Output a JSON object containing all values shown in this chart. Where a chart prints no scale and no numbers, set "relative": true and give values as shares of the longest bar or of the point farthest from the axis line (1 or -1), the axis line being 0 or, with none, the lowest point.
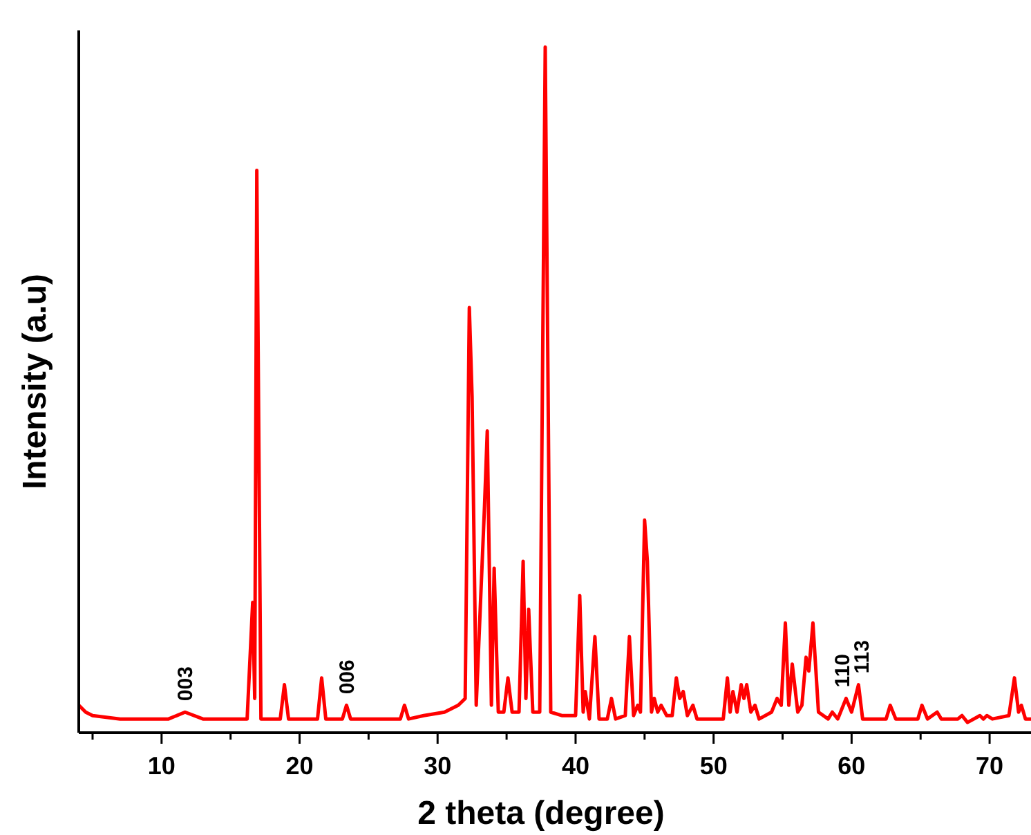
{
  "chart_data": {
    "type": "line",
    "relative": true,
    "xlabel": "2 theta (degree)",
    "ylabel": "Intensity (a.u)",
    "xlim": [
      4,
      73
    ],
    "xticks": [
      {
        "value": 5,
        "label": null
      },
      10,
      {
        "value": 15,
        "label": null
      },
      20,
      {
        "value": 25,
        "label": null
      },
      30,
      {
        "value": 35,
        "label": null
      },
      40,
      {
        "value": 45,
        "label": null
      },
      50,
      {
        "value": 55,
        "label": null
      },
      60,
      {
        "value": 65,
        "label": null
      },
      70
    ],
    "tick_labels": "x",
    "grid": false,
    "line_style": "solid",
    "annotations": [
      {
        "text": "003",
        "x": 11.7,
        "y": 0.03
      },
      {
        "text": "006",
        "x": 23.4,
        "y": 0.04
      },
      {
        "text": "110",
        "x": 59.3,
        "y": 0.05
      },
      {
        "text": "113",
        "x": 60.7,
        "y": 0.07
      }
    ],
    "series": [
      {
        "color": "#ff0000",
        "x": [
          4,
          4.5,
          5,
          7,
          9,
          10.5,
          11.7,
          13,
          15,
          16.2,
          16.6,
          16.75,
          16.9,
          17.2,
          18.6,
          18.9,
          19.2,
          21.3,
          21.6,
          21.9,
          23.1,
          23.4,
          23.7,
          25,
          27.3,
          27.6,
          27.9,
          29,
          30.5,
          31.5,
          32.0,
          32.3,
          32.5,
          32.8,
          33.4,
          33.6,
          33.9,
          34.1,
          34.4,
          34.8,
          35.1,
          35.4,
          35.9,
          36.2,
          36.4,
          36.6,
          36.9,
          37.4,
          37.8,
          38.2,
          39,
          40.0,
          40.3,
          40.55,
          40.7,
          41.0,
          41.4,
          41.7,
          42.3,
          42.6,
          42.9,
          43.6,
          43.9,
          44.2,
          44.5,
          44.7,
          45.0,
          45.2,
          45.5,
          45.7,
          45.95,
          46.2,
          46.6,
          47.0,
          47.3,
          47.55,
          47.8,
          48.1,
          48.5,
          48.8,
          50,
          50.7,
          51.0,
          51.2,
          51.4,
          51.7,
          52.0,
          52.2,
          52.4,
          52.7,
          53.0,
          53.3,
          54.2,
          54.6,
          54.9,
          55.2,
          55.45,
          55.7,
          56.1,
          56.4,
          56.7,
          56.9,
          57.2,
          57.6,
          58.3,
          58.6,
          59.0,
          59.6,
          60.0,
          60.5,
          60.8,
          61.5,
          62.5,
          62.8,
          63.2,
          64.8,
          65.1,
          65.5,
          66.2,
          66.5,
          67.7,
          68.0,
          68.4,
          69.3,
          69.55,
          69.8,
          70.2,
          71.4,
          71.8,
          72.1,
          72.3,
          72.6,
          73
        ],
        "values": [
          0.04,
          0.03,
          0.025,
          0.02,
          0.02,
          0.02,
          0.03,
          0.02,
          0.02,
          0.02,
          0.19,
          0.05,
          0.82,
          0.02,
          0.02,
          0.07,
          0.02,
          0.02,
          0.08,
          0.02,
          0.02,
          0.04,
          0.02,
          0.02,
          0.02,
          0.04,
          0.02,
          0.025,
          0.03,
          0.04,
          0.05,
          0.62,
          0.49,
          0.04,
          0.33,
          0.44,
          0.04,
          0.24,
          0.03,
          0.03,
          0.08,
          0.03,
          0.03,
          0.25,
          0.05,
          0.18,
          0.03,
          0.03,
          1.0,
          0.03,
          0.025,
          0.025,
          0.2,
          0.03,
          0.06,
          0.02,
          0.14,
          0.02,
          0.02,
          0.05,
          0.02,
          0.025,
          0.14,
          0.025,
          0.04,
          0.03,
          0.31,
          0.25,
          0.03,
          0.05,
          0.03,
          0.04,
          0.025,
          0.025,
          0.08,
          0.05,
          0.06,
          0.025,
          0.04,
          0.02,
          0.02,
          0.02,
          0.08,
          0.03,
          0.06,
          0.03,
          0.07,
          0.05,
          0.07,
          0.03,
          0.04,
          0.02,
          0.03,
          0.05,
          0.04,
          0.16,
          0.04,
          0.1,
          0.03,
          0.04,
          0.11,
          0.09,
          0.16,
          0.03,
          0.02,
          0.03,
          0.02,
          0.05,
          0.03,
          0.07,
          0.02,
          0.02,
          0.02,
          0.04,
          0.02,
          0.02,
          0.04,
          0.02,
          0.03,
          0.02,
          0.02,
          0.025,
          0.015,
          0.025,
          0.02,
          0.025,
          0.02,
          0.025,
          0.08,
          0.03,
          0.04,
          0.02,
          0.02
        ]
      }
    ]
  }
}
